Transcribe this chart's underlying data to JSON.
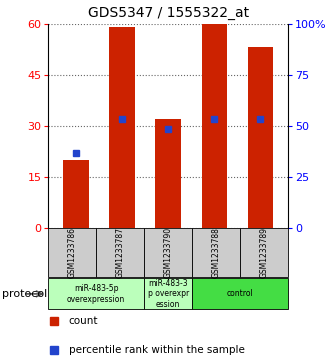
{
  "title": "GDS5347 / 1555322_at",
  "samples": [
    "GSM1233786",
    "GSM1233787",
    "GSM1233790",
    "GSM1233788",
    "GSM1233789"
  ],
  "bar_values": [
    20,
    59,
    32,
    60,
    53
  ],
  "blue_values": [
    22,
    32,
    29,
    32,
    32
  ],
  "left_ylim": [
    0,
    60
  ],
  "right_ylim": [
    0,
    100
  ],
  "left_yticks": [
    0,
    15,
    30,
    45,
    60
  ],
  "right_yticks": [
    0,
    25,
    50,
    75,
    100
  ],
  "right_yticklabels": [
    "0",
    "25",
    "50",
    "75",
    "100%"
  ],
  "bar_color": "#cc2200",
  "blue_color": "#2244cc",
  "bar_width": 0.55,
  "grid_color": "#666666",
  "bg_color": "#ffffff",
  "label_bg": "#cccccc",
  "proto_group1_color": "#bbffbb",
  "proto_group2_color": "#44dd44",
  "groups": [
    {
      "start": 0,
      "end": 1,
      "label": "miR-483-5p\noverexpression",
      "color": "#bbffbb"
    },
    {
      "start": 2,
      "end": 2,
      "label": "miR-483-3\np overexpr\nession",
      "color": "#bbffbb"
    },
    {
      "start": 3,
      "end": 4,
      "label": "control",
      "color": "#44dd44"
    }
  ]
}
